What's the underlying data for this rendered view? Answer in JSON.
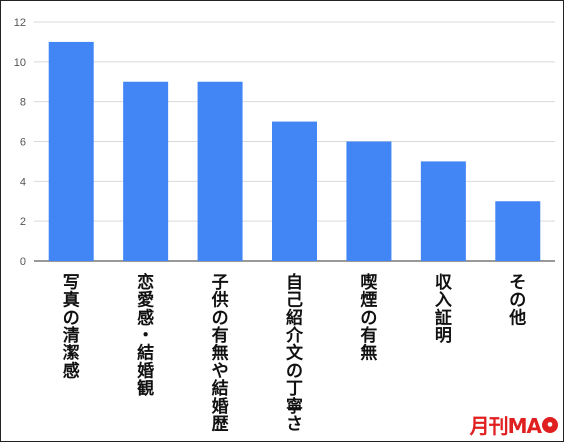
{
  "chart_data": {
    "type": "bar",
    "categories": [
      "写真の清潔感",
      "恋愛感・結婚観",
      "子供の有無や結婚歴",
      "自己紹介文の丁寧さ",
      "喫煙の有無",
      "収入証明",
      "その他"
    ],
    "values": [
      11,
      9,
      9,
      7,
      6,
      5,
      3
    ],
    "ylim": [
      0,
      12
    ],
    "yticks": [
      0,
      2,
      4,
      6,
      8,
      10,
      12
    ],
    "grid": true,
    "bar_color": "#4285f4"
  },
  "brand": {
    "text": "月刊MA",
    "color": "#e02020"
  }
}
